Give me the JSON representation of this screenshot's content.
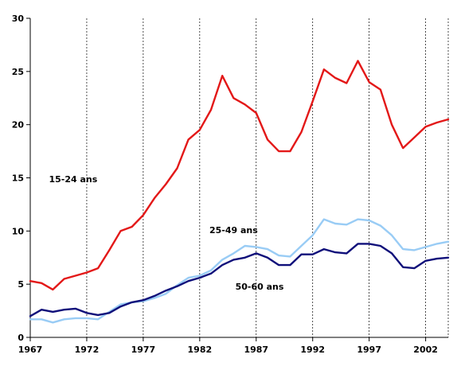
{
  "chart_data": {
    "type": "line",
    "title": "",
    "xlabel": "",
    "ylabel": "",
    "xlim": [
      1967,
      2004
    ],
    "ylim": [
      0,
      30
    ],
    "grid": "vertical",
    "x_ticks": [
      1967,
      1972,
      1977,
      1982,
      1987,
      1992,
      1997,
      2002
    ],
    "x_tick_labels": [
      "1967",
      "1972",
      "1977",
      "1982",
      "1987",
      "1992",
      "1997",
      "2002"
    ],
    "y_ticks": [
      0,
      5,
      10,
      15,
      20,
      25,
      30
    ],
    "y_tick_labels": [
      "0",
      "5",
      "10",
      "15",
      "20",
      "25",
      "30"
    ],
    "x": [
      1967,
      1968,
      1969,
      1970,
      1971,
      1972,
      1973,
      1974,
      1975,
      1976,
      1977,
      1978,
      1979,
      1980,
      1981,
      1982,
      1983,
      1984,
      1985,
      1986,
      1987,
      1988,
      1989,
      1990,
      1991,
      1992,
      1993,
      1994,
      1995,
      1996,
      1997,
      1998,
      1999,
      2000,
      2001,
      2002,
      2003,
      2004
    ],
    "series": [
      {
        "name": "15-24 ans",
        "color": "#e31818",
        "values": [
          5.3,
          5.1,
          4.5,
          5.5,
          5.8,
          6.1,
          6.5,
          8.2,
          10.0,
          10.4,
          11.5,
          13.1,
          14.4,
          15.9,
          18.6,
          19.5,
          21.4,
          24.6,
          22.5,
          21.9,
          21.1,
          18.6,
          17.5,
          17.5,
          19.3,
          22.2,
          25.2,
          24.4,
          23.9,
          26.0,
          24.0,
          23.3,
          20.0,
          17.8,
          18.8,
          19.8,
          20.2,
          20.5
        ],
        "label_pos": {
          "x": 1970.8,
          "y": 14.9
        }
      },
      {
        "name": "25-49 ans",
        "color": "#99ccf5",
        "values": [
          1.7,
          1.7,
          1.4,
          1.7,
          1.8,
          1.8,
          1.7,
          2.4,
          3.1,
          3.3,
          3.4,
          3.7,
          4.1,
          4.9,
          5.6,
          5.8,
          6.3,
          7.3,
          7.9,
          8.6,
          8.5,
          8.3,
          7.7,
          7.6,
          8.6,
          9.6,
          11.1,
          10.7,
          10.6,
          11.1,
          11.0,
          10.5,
          9.6,
          8.3,
          8.2,
          8.5,
          8.8,
          9.0
        ],
        "label_pos": {
          "x": 1985.0,
          "y": 10.1
        }
      },
      {
        "name": "50-60 ans",
        "color": "#0f0f7a",
        "values": [
          2.0,
          2.6,
          2.4,
          2.6,
          2.7,
          2.3,
          2.1,
          2.3,
          2.9,
          3.3,
          3.5,
          3.9,
          4.4,
          4.8,
          5.3,
          5.6,
          6.0,
          6.8,
          7.3,
          7.5,
          7.9,
          7.5,
          6.8,
          6.8,
          7.8,
          7.8,
          8.3,
          8.0,
          7.9,
          8.8,
          8.8,
          8.6,
          7.9,
          6.6,
          6.5,
          7.2,
          7.4,
          7.5
        ],
        "label_pos": {
          "x": 1987.3,
          "y": 4.8
        }
      }
    ]
  }
}
